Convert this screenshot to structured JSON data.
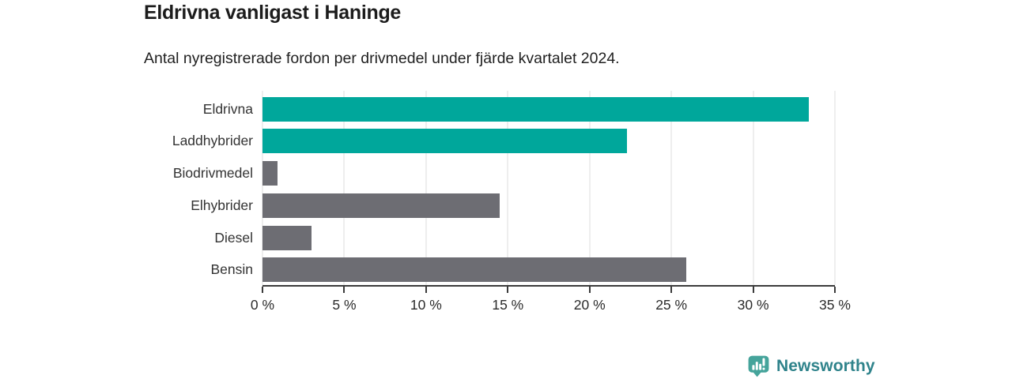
{
  "page": {
    "background_color": "#ffffff"
  },
  "chart_data": {
    "type": "bar",
    "orientation": "horizontal",
    "title": "Eldrivna vanligast i Haninge",
    "subtitle": "Antal nyregistrerade fordon per drivmedel under fjärde kvartalet 2024.",
    "categories": [
      "Eldrivna",
      "Laddhybrider",
      "Biodrivmedel",
      "Elhybrider",
      "Diesel",
      "Bensin"
    ],
    "values": [
      33.4,
      22.3,
      0.9,
      14.5,
      3.0,
      25.9
    ],
    "unit": "%",
    "xlabel": "",
    "ylabel": "",
    "xlim": [
      0,
      35
    ],
    "xtick_values": [
      0,
      5,
      10,
      15,
      20,
      25,
      30,
      35
    ],
    "xtick_labels": [
      "0 %",
      "5 %",
      "10 %",
      "15 %",
      "20 %",
      "25 %",
      "30 %",
      "35 %"
    ],
    "bar_colors": [
      "#00a79b",
      "#00a79b",
      "#6d6d73",
      "#6d6d73",
      "#6d6d73",
      "#6d6d73"
    ],
    "highlight_color": "#00a79b",
    "default_color": "#6d6d73",
    "gridline_color": "#dedede",
    "axis_color": "#3b3b3b",
    "grid": true,
    "legend_position": "none"
  },
  "footer": {
    "brand": "Newsworthy",
    "brand_color": "#2f838b",
    "icon": "bar-chart-speech-bubble-icon",
    "icon_color": "#45a49b"
  }
}
